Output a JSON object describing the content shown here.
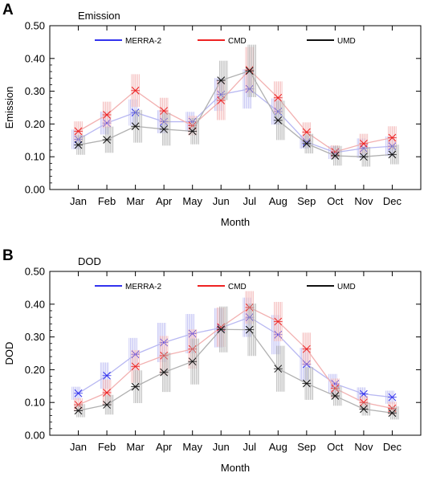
{
  "chart_data": [
    {
      "type": "line",
      "panel_letter": "A",
      "title": "Emission",
      "xlabel": "Month",
      "ylabel": "Emission",
      "ylim": [
        0,
        0.5
      ],
      "yticks": [
        "0.00",
        "0.10",
        "0.20",
        "0.30",
        "0.40",
        "0.50"
      ],
      "categories": [
        "Jan",
        "Feb",
        "Mar",
        "Apr",
        "May",
        "Jun",
        "Jul",
        "Aug",
        "Sep",
        "Oct",
        "Nov",
        "Dec"
      ],
      "legend_position": "top",
      "series": [
        {
          "name": "MERRA-2",
          "color": "#3333ee",
          "values": [
            0.153,
            0.203,
            0.235,
            0.207,
            0.207,
            0.29,
            0.307,
            0.238,
            0.145,
            0.113,
            0.126,
            0.132
          ],
          "err": [
            0.03,
            0.035,
            0.04,
            0.035,
            0.03,
            0.05,
            0.06,
            0.04,
            0.02,
            0.02,
            0.03,
            0.03
          ]
        },
        {
          "name": "CMD",
          "color": "#ee2222",
          "values": [
            0.178,
            0.228,
            0.302,
            0.24,
            0.195,
            0.272,
            0.365,
            0.28,
            0.175,
            0.115,
            0.14,
            0.158
          ],
          "err": [
            0.03,
            0.04,
            0.05,
            0.04,
            0.03,
            0.06,
            0.07,
            0.05,
            0.03,
            0.02,
            0.03,
            0.035
          ]
        },
        {
          "name": "UMD",
          "color": "#111111",
          "values": [
            0.136,
            0.152,
            0.193,
            0.184,
            0.178,
            0.333,
            0.362,
            0.211,
            0.14,
            0.103,
            0.1,
            0.107
          ],
          "err": [
            0.03,
            0.04,
            0.05,
            0.05,
            0.04,
            0.06,
            0.08,
            0.06,
            0.03,
            0.03,
            0.03,
            0.03
          ]
        }
      ]
    },
    {
      "type": "line",
      "panel_letter": "B",
      "title": "DOD",
      "xlabel": "Month",
      "ylabel": "DOD",
      "ylim": [
        0,
        0.5
      ],
      "yticks": [
        "0.00",
        "0.10",
        "0.20",
        "0.30",
        "0.40",
        "0.50"
      ],
      "categories": [
        "Jan",
        "Feb",
        "Mar",
        "Apr",
        "May",
        "Jun",
        "Jul",
        "Aug",
        "Sep",
        "Oct",
        "Nov",
        "Dec"
      ],
      "legend_position": "top",
      "series": [
        {
          "name": "MERRA-2",
          "color": "#3333ee",
          "values": [
            0.128,
            0.182,
            0.247,
            0.283,
            0.31,
            0.328,
            0.36,
            0.307,
            0.217,
            0.157,
            0.126,
            0.116
          ],
          "err": [
            0.02,
            0.04,
            0.05,
            0.06,
            0.06,
            0.06,
            0.06,
            0.06,
            0.05,
            0.03,
            0.02,
            0.02
          ]
        },
        {
          "name": "CMD",
          "color": "#ee2222",
          "values": [
            0.093,
            0.13,
            0.21,
            0.243,
            0.263,
            0.33,
            0.39,
            0.347,
            0.263,
            0.143,
            0.1,
            0.082
          ],
          "err": [
            0.02,
            0.04,
            0.05,
            0.06,
            0.06,
            0.06,
            0.05,
            0.06,
            0.05,
            0.03,
            0.02,
            0.02
          ]
        },
        {
          "name": "UMD",
          "color": "#111111",
          "values": [
            0.075,
            0.093,
            0.148,
            0.192,
            0.225,
            0.323,
            0.322,
            0.203,
            0.158,
            0.12,
            0.08,
            0.068
          ],
          "err": [
            0.02,
            0.03,
            0.05,
            0.06,
            0.07,
            0.07,
            0.08,
            0.07,
            0.05,
            0.03,
            0.02,
            0.02
          ]
        }
      ]
    }
  ]
}
